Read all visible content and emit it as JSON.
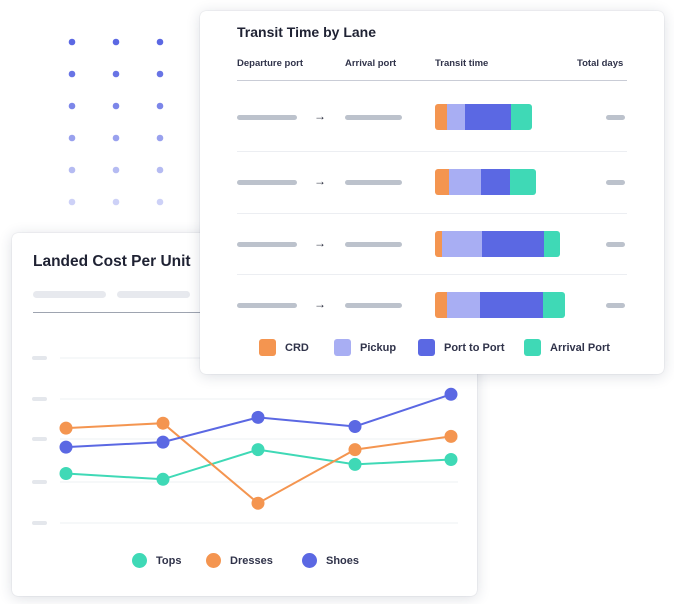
{
  "transit_card": {
    "title": "Transit Time by Lane",
    "columns": [
      "Departure port",
      "Arrival port",
      "Transit time",
      "Total days"
    ],
    "legend": [
      {
        "label": "CRD",
        "color": "#F49550"
      },
      {
        "label": "Pickup",
        "color": "#A8AEF3"
      },
      {
        "label": "Port to Port",
        "color": "#5B68E3"
      },
      {
        "label": "Arrival Port",
        "color": "#3FD9B6"
      }
    ],
    "arrow_glyph": "→"
  },
  "cost_card": {
    "title": "Landed Cost Per Unit"
  },
  "chart_data": [
    {
      "type": "bar",
      "stacked": true,
      "orientation": "horizontal",
      "title": "Transit Time by Lane",
      "categories": [
        "",
        "",
        "",
        ""
      ],
      "series": [
        {
          "name": "CRD",
          "color": "#F49550",
          "values": [
            1.3,
            1.5,
            0.8,
            1.3
          ]
        },
        {
          "name": "Pickup",
          "color": "#A8AEF3",
          "values": [
            2.0,
            3.5,
            4.3,
            3.6
          ]
        },
        {
          "name": "Port to Port",
          "color": "#5B68E3",
          "values": [
            5.0,
            3.2,
            6.8,
            6.8
          ]
        },
        {
          "name": "Arrival Port",
          "color": "#3FD9B6",
          "values": [
            2.2,
            2.8,
            1.7,
            2.4
          ]
        }
      ]
    },
    {
      "type": "line",
      "title": "Landed Cost Per Unit",
      "x": [
        1,
        2,
        3,
        4,
        5
      ],
      "ylim": [
        0,
        10
      ],
      "grid": true,
      "legend_position": "bottom",
      "series": [
        {
          "name": "Tops",
          "color": "#3FD9B6",
          "values": [
            3.0,
            2.65,
            4.45,
            3.55,
            3.85
          ]
        },
        {
          "name": "Dresses",
          "color": "#F49550",
          "values": [
            5.75,
            6.05,
            1.2,
            4.45,
            5.25
          ]
        },
        {
          "name": "Shoes",
          "color": "#5B68E3",
          "values": [
            4.6,
            4.9,
            6.4,
            5.85,
            7.8
          ]
        }
      ]
    }
  ]
}
